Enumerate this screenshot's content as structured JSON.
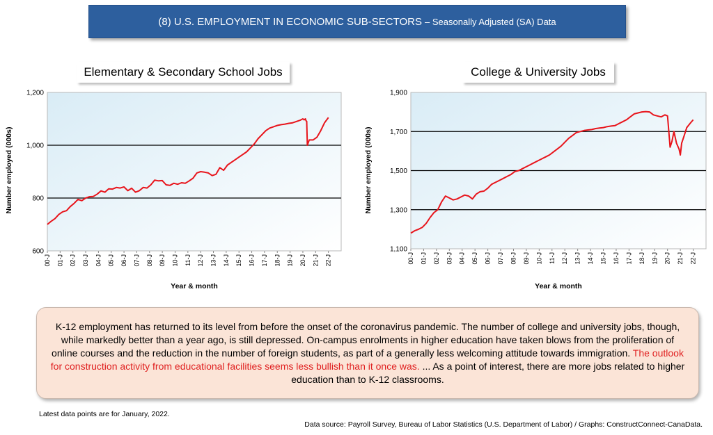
{
  "header": {
    "title": "(8) U.S. EMPLOYMENT IN ECONOMIC SUB-SECTORS",
    "subtitle": "– Seasonally Adjusted (SA) Data"
  },
  "chart_data": [
    {
      "type": "line",
      "title": "Elementary & Secondary School Jobs",
      "xlabel": "Year & month",
      "ylabel": "Number employed (000s)",
      "ylim": [
        600,
        1200
      ],
      "yticks": [
        600,
        800,
        1000,
        1200
      ],
      "ytick_labels": [
        "600",
        "800",
        "1,000",
        "1,200"
      ],
      "gridlines_at": [
        800,
        1000
      ],
      "xlim": [
        2000,
        2023
      ],
      "xtick_labels": [
        "00-J",
        "01-J",
        "02-J",
        "03-J",
        "04-J",
        "05-J",
        "06-J",
        "07-J",
        "08-J",
        "09-J",
        "10-J",
        "11-J",
        "12-J",
        "13-J",
        "14-J",
        "15-J",
        "16-J",
        "17-J",
        "18-J",
        "19-J",
        "20-J",
        "21-J",
        "22-J"
      ],
      "series": [
        {
          "color": "#e8141b",
          "x": [
            2000.0,
            2000.3,
            2000.6,
            2000.9,
            2001.2,
            2001.5,
            2001.8,
            2002.1,
            2002.4,
            2002.7,
            2003.0,
            2003.3,
            2003.6,
            2003.9,
            2004.2,
            2004.5,
            2004.8,
            2005.1,
            2005.4,
            2005.7,
            2006.0,
            2006.3,
            2006.6,
            2006.9,
            2007.2,
            2007.5,
            2007.8,
            2008.1,
            2008.4,
            2008.7,
            2009.0,
            2009.3,
            2009.6,
            2009.9,
            2010.2,
            2010.5,
            2010.8,
            2011.1,
            2011.4,
            2011.7,
            2012.0,
            2012.3,
            2012.6,
            2012.9,
            2013.2,
            2013.5,
            2013.8,
            2014.1,
            2014.4,
            2014.7,
            2015.0,
            2015.3,
            2015.6,
            2015.9,
            2016.2,
            2016.5,
            2016.8,
            2017.1,
            2017.4,
            2017.7,
            2018.0,
            2018.3,
            2018.6,
            2018.9,
            2019.2,
            2019.5,
            2019.8,
            2020.0,
            2020.1,
            2020.2,
            2020.25,
            2020.3,
            2020.35,
            2020.5,
            2020.8,
            2021.1,
            2021.4,
            2021.7,
            2022.0
          ],
          "y": [
            700,
            712,
            722,
            738,
            748,
            752,
            768,
            780,
            795,
            790,
            800,
            805,
            806,
            815,
            827,
            822,
            835,
            834,
            840,
            838,
            842,
            828,
            837,
            822,
            828,
            840,
            838,
            850,
            868,
            865,
            866,
            850,
            848,
            856,
            852,
            858,
            856,
            865,
            875,
            895,
            900,
            898,
            895,
            885,
            890,
            915,
            905,
            925,
            935,
            945,
            955,
            965,
            975,
            990,
            1005,
            1025,
            1040,
            1055,
            1065,
            1070,
            1075,
            1078,
            1080,
            1083,
            1085,
            1090,
            1095,
            1100,
            1096,
            1100,
            1093,
            1090,
            1000,
            1020,
            1020,
            1030,
            1055,
            1085,
            1105
          ]
        }
      ]
    },
    {
      "type": "line",
      "title": "College & University Jobs",
      "xlabel": "Year & month",
      "ylabel": "Number employed (000s)",
      "ylim": [
        1100,
        1900
      ],
      "yticks": [
        1100,
        1300,
        1500,
        1700,
        1900
      ],
      "ytick_labels": [
        "1,100",
        "1,300",
        "1,500",
        "1,700",
        "1,900"
      ],
      "gridlines_at": [
        1300,
        1500,
        1700
      ],
      "xlim": [
        2000,
        2023
      ],
      "xtick_labels": [
        "00-J",
        "01-J",
        "02-J",
        "03-J",
        "04-J",
        "05-J",
        "06-J",
        "07-J",
        "08-J",
        "09-J",
        "10-J",
        "11-J",
        "12-J",
        "13-J",
        "14-J",
        "15-J",
        "16-J",
        "17-J",
        "18-J",
        "19-J",
        "20-J",
        "21-J",
        "22-J"
      ],
      "series": [
        {
          "color": "#e8141b",
          "x": [
            2000.0,
            2000.3,
            2000.6,
            2000.9,
            2001.2,
            2001.5,
            2001.8,
            2002.1,
            2002.4,
            2002.7,
            2003.0,
            2003.3,
            2003.6,
            2003.9,
            2004.2,
            2004.5,
            2004.8,
            2005.1,
            2005.4,
            2005.7,
            2006.0,
            2006.3,
            2006.6,
            2006.9,
            2007.2,
            2007.5,
            2007.8,
            2008.1,
            2008.4,
            2008.7,
            2009.0,
            2009.3,
            2009.6,
            2009.9,
            2010.2,
            2010.5,
            2010.8,
            2011.1,
            2011.4,
            2011.7,
            2012.0,
            2012.3,
            2012.6,
            2012.9,
            2013.2,
            2013.5,
            2013.8,
            2014.1,
            2014.4,
            2014.7,
            2015.0,
            2015.3,
            2015.6,
            2015.9,
            2016.2,
            2016.5,
            2016.8,
            2017.1,
            2017.4,
            2017.7,
            2018.0,
            2018.3,
            2018.6,
            2018.9,
            2019.2,
            2019.5,
            2019.8,
            2020.0,
            2020.2,
            2020.35,
            2020.5,
            2020.7,
            2020.9,
            2021.0,
            2021.1,
            2021.3,
            2021.5,
            2021.8,
            2022.0
          ],
          "y": [
            1180,
            1192,
            1200,
            1210,
            1230,
            1260,
            1285,
            1300,
            1340,
            1370,
            1360,
            1350,
            1355,
            1365,
            1375,
            1370,
            1355,
            1380,
            1392,
            1395,
            1410,
            1430,
            1440,
            1450,
            1460,
            1470,
            1480,
            1495,
            1500,
            1510,
            1520,
            1530,
            1540,
            1550,
            1560,
            1570,
            1580,
            1595,
            1610,
            1625,
            1645,
            1665,
            1680,
            1695,
            1700,
            1705,
            1708,
            1710,
            1715,
            1718,
            1720,
            1725,
            1728,
            1730,
            1740,
            1750,
            1760,
            1775,
            1790,
            1795,
            1800,
            1802,
            1800,
            1785,
            1780,
            1775,
            1785,
            1780,
            1620,
            1650,
            1700,
            1640,
            1610,
            1580,
            1640,
            1680,
            1720,
            1745,
            1760
          ]
        }
      ]
    }
  ],
  "note": {
    "text_before": "K-12 employment has returned to its level from before the onset of the coronavirus pandemic. The number of college and university jobs, though, while markedly better than a year ago, is still depressed. On-campus enrolments in higher education have taken blows from the proliferation of online courses and the reduction in the number of foreign students, as part of a generally less welcoming attitude towards immigration.",
    "highlight": "The outlook for construction activity from educational facilities seems less bullish than it once was.",
    "text_after": "...  As a point of interest, there are more jobs related to higher education than to K-12 classrooms."
  },
  "footer": {
    "latest": "Latest data points are for January, 2022.",
    "source": "Data source: Payroll Survey, Bureau of Labor Statistics (U.S. Department of Labor) / Graphs: ConstructConnect-CanaData."
  }
}
